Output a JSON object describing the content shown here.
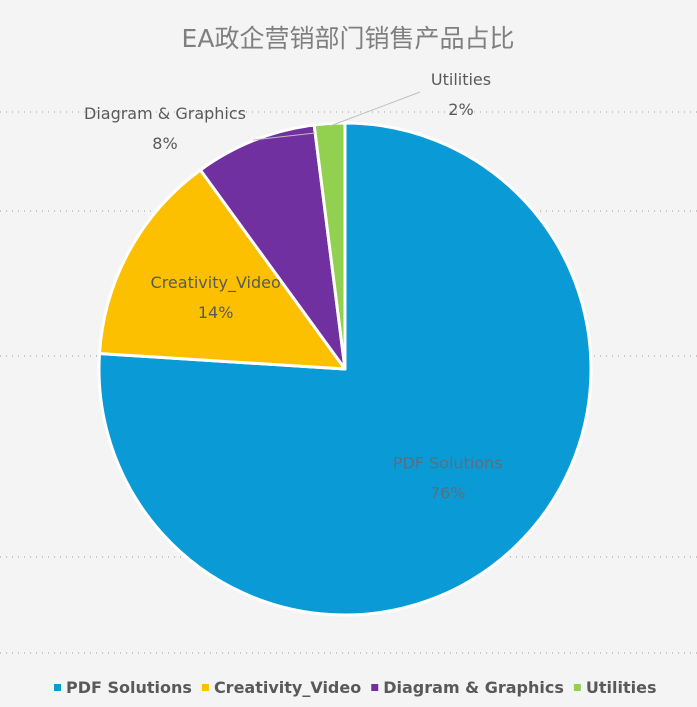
{
  "chart_data": {
    "type": "pie",
    "title": "EA政企营销部门销售产品占比",
    "categories": [
      "PDF Solutions",
      "Creativity_Video",
      "Diagram & Graphics",
      "Utilities"
    ],
    "values": [
      76,
      14,
      8,
      2
    ],
    "value_labels": [
      "76%",
      "14%",
      "8%",
      "2%"
    ],
    "colors": [
      "#0a9bd7",
      "#fcc000",
      "#7030a0",
      "#92d050"
    ],
    "legend_position": "bottom",
    "data_labels": "category name and percentage",
    "start_angle_deg": 0,
    "direction": "clockwise"
  }
}
